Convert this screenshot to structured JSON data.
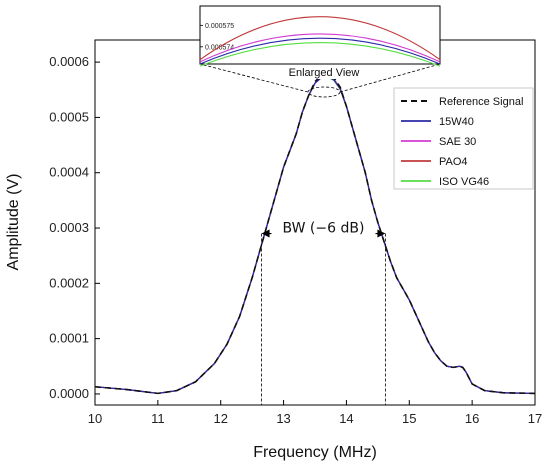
{
  "chart_data": {
    "type": "line",
    "title": "",
    "xlabel": "Frequency (MHz)",
    "ylabel": "Amplitude (V)",
    "xlim": [
      10,
      17
    ],
    "ylim": [
      -2e-05,
      0.00064
    ],
    "x_ticks": [
      10,
      11,
      12,
      13,
      14,
      15,
      16,
      17
    ],
    "x_tick_labels": [
      "10",
      "11",
      "12",
      "13",
      "14",
      "15",
      "16",
      "17"
    ],
    "y_ticks": [
      0,
      0.0001,
      0.0002,
      0.0003,
      0.0004,
      0.0005,
      0.0006
    ],
    "y_tick_labels": [
      "0.0000",
      "0.0001",
      "0.0002",
      "0.0003",
      "0.0004",
      "0.0005",
      "0.0006"
    ],
    "grid": false,
    "legend_position": "top-right",
    "x": [
      10.0,
      10.5,
      11.0,
      11.3,
      11.6,
      11.9,
      12.1,
      12.3,
      12.5,
      12.6,
      12.7,
      12.8,
      12.9,
      13.0,
      13.1,
      13.2,
      13.3,
      13.4,
      13.5,
      13.6,
      13.65,
      13.7,
      13.8,
      13.9,
      14.0,
      14.1,
      14.2,
      14.3,
      14.4,
      14.5,
      14.6,
      14.7,
      14.8,
      14.9,
      15.0,
      15.1,
      15.2,
      15.3,
      15.4,
      15.5,
      15.6,
      15.7,
      15.8,
      15.85,
      15.9,
      16.0,
      16.2,
      16.5,
      17.0
    ],
    "series": [
      {
        "name": "Reference Signal",
        "color": "#111111",
        "dash": "dashed",
        "values": [
          1.3e-05,
          8e-06,
          1e-06,
          6e-06,
          2.2e-05,
          5.5e-05,
          9e-05,
          0.00014,
          0.00021,
          0.00025,
          0.00029,
          0.00033,
          0.00037,
          0.00041,
          0.00044,
          0.00047,
          0.00051,
          0.00054,
          0.000565,
          0.000575,
          0.00058,
          0.000578,
          0.000572,
          0.000555,
          0.00052,
          0.00048,
          0.00044,
          0.0004,
          0.00035,
          0.00031,
          0.000275,
          0.00024,
          0.00021,
          0.00019,
          0.00017,
          0.000145,
          0.00012,
          9.5e-05,
          7.5e-05,
          6e-05,
          5e-05,
          4.8e-05,
          5e-05,
          4.8e-05,
          4e-05,
          1.8e-05,
          6e-06,
          2e-06,
          1e-06
        ]
      },
      {
        "name": "15W40",
        "color": "#2b2ba8",
        "dash": "solid",
        "values": [
          1.3e-05,
          8e-06,
          1e-06,
          6e-06,
          2.2e-05,
          5.5e-05,
          9e-05,
          0.00014,
          0.00021,
          0.00025,
          0.00029,
          0.00033,
          0.00037,
          0.00041,
          0.00044,
          0.00047,
          0.00051,
          0.00054,
          0.000562,
          0.000572,
          0.000575,
          0.000574,
          0.000568,
          0.000552,
          0.00052,
          0.00048,
          0.00044,
          0.0004,
          0.00035,
          0.00031,
          0.000275,
          0.00024,
          0.00021,
          0.00019,
          0.00017,
          0.000145,
          0.00012,
          9.5e-05,
          7.5e-05,
          6e-05,
          5e-05,
          4.8e-05,
          5e-05,
          4.8e-05,
          4e-05,
          1.8e-05,
          6e-06,
          2e-06,
          1e-06
        ]
      },
      {
        "name": "SAE 30",
        "color": "#d23bd2",
        "dash": "solid",
        "values": [
          1.3e-05,
          8e-06,
          1e-06,
          6e-06,
          2.2e-05,
          5.5e-05,
          9e-05,
          0.00014,
          0.00021,
          0.00025,
          0.00029,
          0.00033,
          0.00037,
          0.00041,
          0.00044,
          0.00047,
          0.00051,
          0.00054,
          0.000562,
          0.000572,
          0.000575,
          0.000574,
          0.000568,
          0.000552,
          0.00052,
          0.00048,
          0.00044,
          0.0004,
          0.00035,
          0.00031,
          0.000275,
          0.00024,
          0.00021,
          0.00019,
          0.00017,
          0.000145,
          0.00012,
          9.5e-05,
          7.5e-05,
          6e-05,
          5e-05,
          4.8e-05,
          5e-05,
          4.8e-05,
          4e-05,
          1.8e-05,
          6e-06,
          2e-06,
          1e-06
        ]
      },
      {
        "name": "PAO4",
        "color": "#c0393b",
        "dash": "solid",
        "values": [
          1.3e-05,
          8e-06,
          1e-06,
          6e-06,
          2.2e-05,
          5.5e-05,
          9e-05,
          0.00014,
          0.00021,
          0.00025,
          0.00029,
          0.00033,
          0.00037,
          0.00041,
          0.00044,
          0.00047,
          0.00051,
          0.00054,
          0.000562,
          0.000573,
          0.000576,
          0.000575,
          0.000569,
          0.000553,
          0.00052,
          0.00048,
          0.00044,
          0.0004,
          0.00035,
          0.00031,
          0.000275,
          0.00024,
          0.00021,
          0.00019,
          0.00017,
          0.000145,
          0.00012,
          9.5e-05,
          7.5e-05,
          6e-05,
          5e-05,
          4.8e-05,
          5e-05,
          4.8e-05,
          4e-05,
          1.8e-05,
          6e-06,
          2e-06,
          1e-06
        ]
      },
      {
        "name": "ISO VG46",
        "color": "#55dd44",
        "dash": "solid",
        "values": [
          1.3e-05,
          8e-06,
          1e-06,
          6e-06,
          2.2e-05,
          5.5e-05,
          9e-05,
          0.00014,
          0.00021,
          0.00025,
          0.00029,
          0.00033,
          0.00037,
          0.00041,
          0.00044,
          0.00047,
          0.00051,
          0.00054,
          0.000562,
          0.000572,
          0.000574,
          0.000573,
          0.000567,
          0.000551,
          0.00052,
          0.00048,
          0.00044,
          0.0004,
          0.00035,
          0.00031,
          0.000275,
          0.00024,
          0.00021,
          0.00019,
          0.00017,
          0.000145,
          0.00012,
          9.5e-05,
          7.5e-05,
          6e-05,
          5e-05,
          4.8e-05,
          5e-05,
          4.8e-05,
          4e-05,
          1.8e-05,
          6e-06,
          2e-06,
          1e-06
        ]
      }
    ],
    "annotations": {
      "bandwidth": {
        "label": "BW (−6 dB)",
        "x_start": 12.65,
        "x_end": 14.62,
        "y": 0.00029
      },
      "inset": {
        "title": "Enlarged View",
        "y_tick_labels": [
          "0.000575",
          "0.000574"
        ],
        "y_ticks": [
          0.000575,
          0.000574
        ],
        "ylim": [
          0.0005732,
          0.0005759
        ],
        "xlim": [
          13.2,
          14.1
        ],
        "curves": [
          {
            "name": "PAO4",
            "color": "#c0393b",
            "peak": 0.0005754,
            "edge": 0.0005734
          },
          {
            "name": "SAE 30",
            "color": "#d23bd2",
            "peak": 0.0005746,
            "edge": 0.0005733
          },
          {
            "name": "15W40",
            "color": "#2b2ba8",
            "peak": 0.0005744,
            "edge": 0.0005732
          },
          {
            "name": "ISO VG46",
            "color": "#55dd44",
            "peak": 0.0005742,
            "edge": 0.0005731
          }
        ]
      }
    }
  }
}
